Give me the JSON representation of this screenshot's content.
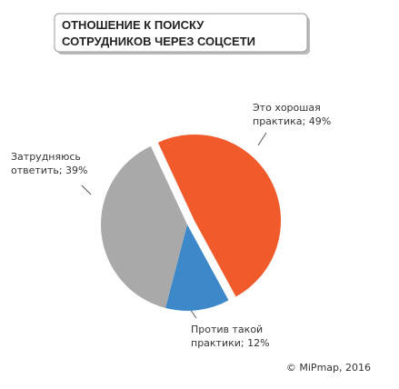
{
  "chart_data": {
    "type": "pie",
    "title": [
      "ОТНОШЕНИЕ К ПОИСКУ",
      "СОТРУДНИКОВ ЧЕРЕЗ СОЦСЕТИ"
    ],
    "values": [
      49,
      12,
      39
    ],
    "value_labels": [
      [
        "Это хорошая",
        "практика; 49%"
      ],
      [
        "Против такой",
        "практики; 12%"
      ],
      [
        "Затрудняюсь",
        "ответить; 39%"
      ]
    ],
    "colors": [
      "#f15a2b",
      "#3d88c9",
      "#a9a9a9"
    ],
    "source": "© MiPmap, 2016"
  }
}
